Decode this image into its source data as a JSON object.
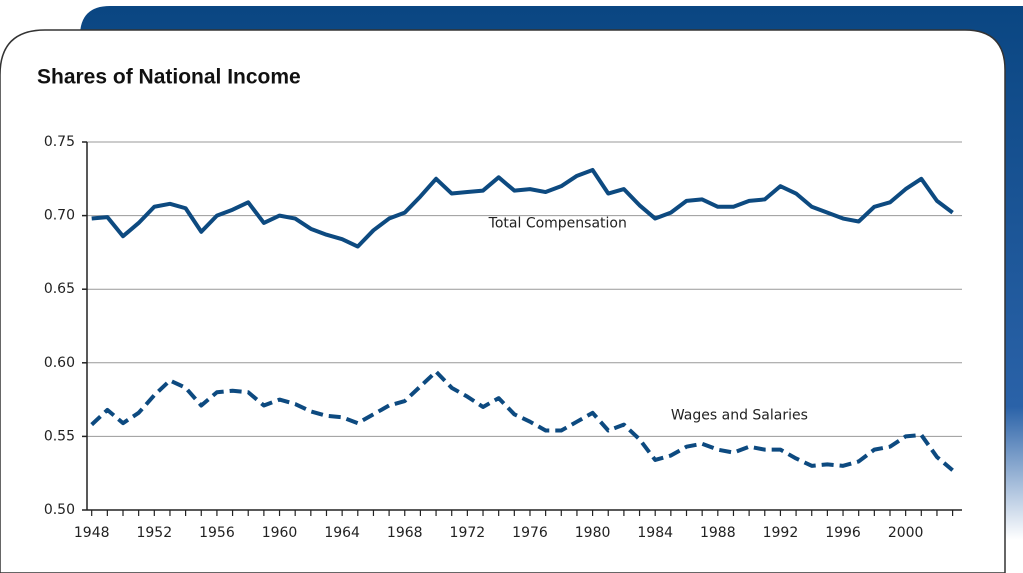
{
  "chart_data": {
    "type": "line",
    "title": "Shares of National Income",
    "x": [
      1948,
      1949,
      1950,
      1951,
      1952,
      1953,
      1954,
      1955,
      1956,
      1957,
      1958,
      1959,
      1960,
      1961,
      1962,
      1963,
      1964,
      1965,
      1966,
      1967,
      1968,
      1969,
      1970,
      1971,
      1972,
      1973,
      1974,
      1975,
      1976,
      1977,
      1978,
      1979,
      1980,
      1981,
      1982,
      1983,
      1984,
      1985,
      1986,
      1987,
      1988,
      1989,
      1990,
      1991,
      1992,
      1993,
      1994,
      1995,
      1996,
      1997,
      1998,
      1999,
      2000,
      2001,
      2002,
      2003
    ],
    "series": [
      {
        "name": "Total Compensation",
        "color": "#0d4a80",
        "dash": false,
        "values": [
          0.698,
          0.699,
          0.686,
          0.695,
          0.706,
          0.708,
          0.705,
          0.689,
          0.7,
          0.704,
          0.709,
          0.695,
          0.7,
          0.698,
          0.691,
          0.687,
          0.684,
          0.679,
          0.69,
          0.698,
          0.702,
          0.713,
          0.725,
          0.715,
          0.716,
          0.717,
          0.726,
          0.717,
          0.718,
          0.716,
          0.72,
          0.727,
          0.731,
          0.715,
          0.718,
          0.707,
          0.698,
          0.702,
          0.71,
          0.711,
          0.706,
          0.706,
          0.71,
          0.711,
          0.72,
          0.715,
          0.706,
          0.702,
          0.698,
          0.696,
          0.706,
          0.709,
          0.718,
          0.725,
          0.71,
          0.702
        ]
      },
      {
        "name": "Wages and Salaries",
        "color": "#0d4a80",
        "dash": true,
        "values": [
          0.558,
          0.568,
          0.559,
          0.566,
          0.578,
          0.588,
          0.583,
          0.571,
          0.58,
          0.581,
          0.58,
          0.571,
          0.575,
          0.572,
          0.567,
          0.564,
          0.563,
          0.559,
          0.565,
          0.571,
          0.574,
          0.584,
          0.594,
          0.583,
          0.577,
          0.57,
          0.576,
          0.565,
          0.56,
          0.554,
          0.554,
          0.56,
          0.566,
          0.554,
          0.558,
          0.548,
          0.534,
          0.537,
          0.543,
          0.545,
          0.541,
          0.539,
          0.543,
          0.541,
          0.541,
          0.535,
          0.53,
          0.531,
          0.53,
          0.533,
          0.541,
          0.543,
          0.55,
          0.551,
          0.536,
          0.527
        ]
      }
    ],
    "xlim": [
      1947.7,
      2003.6
    ],
    "xticks": [
      1948,
      1952,
      1956,
      1960,
      1964,
      1968,
      1972,
      1976,
      1980,
      1984,
      1988,
      1992,
      1996,
      2000
    ],
    "ylim": [
      0.5,
      0.75
    ],
    "yticks": [
      {
        "value": 0.5,
        "label": "0.50"
      },
      0.55,
      {
        "value": 0.6,
        "label": "0.60"
      },
      0.65,
      {
        "value": 0.7,
        "label": "0.70"
      },
      0.75
    ],
    "grid": true
  }
}
